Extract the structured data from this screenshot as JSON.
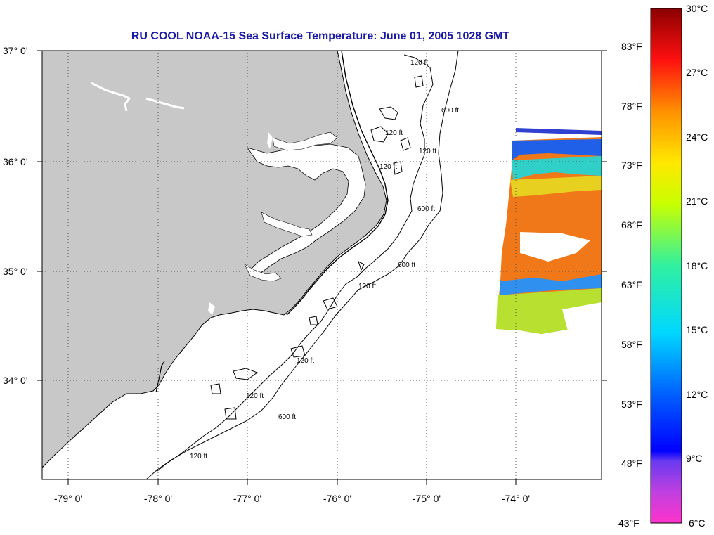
{
  "title": "RU COOL  NOAA-15  Sea Surface Temperature:  June 01, 2005 1028 GMT",
  "latitude_labels": [
    "37° 0'",
    "36° 0'",
    "35° 0'",
    "34° 0'"
  ],
  "longitude_labels": [
    "-79° 0'",
    "-78° 0'",
    "-77° 0'",
    "-76° 0'",
    "-75° 0'",
    "-74° 0'"
  ],
  "contour_labels": [
    "120 ft",
    "120 ft",
    "120 ft",
    "120 ft",
    "120 ft",
    "120 ft",
    "120 ft",
    "120 ft",
    "600 ft",
    "600 ft",
    "600 ft",
    "600 ft"
  ],
  "colorbar": {
    "celsius_labels": [
      "30°C",
      "27°C",
      "24°C",
      "21°C",
      "18°C",
      "15°C",
      "12°C",
      "9°C",
      "6°C"
    ],
    "fahrenheit_labels": [
      "83°F",
      "78°F",
      "73°F",
      "68°F",
      "63°F",
      "58°F",
      "53°F",
      "48°F",
      "43°F"
    ],
    "celsius_range": [
      6,
      30
    ]
  },
  "colors": {
    "land": "#c8c8c8",
    "title": "#1a1aa6",
    "grid": "#555555",
    "warm": "#f07010",
    "cool": "#2060e0"
  }
}
